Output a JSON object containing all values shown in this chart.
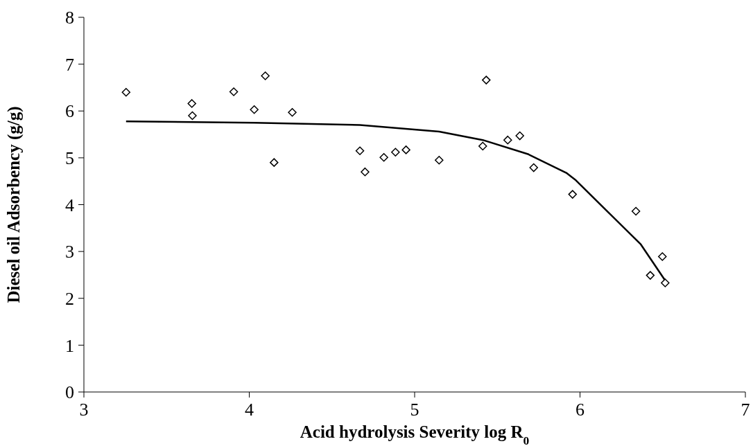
{
  "chart_data": {
    "type": "scatter",
    "xlabel": "Acid hydrolysis Severity log R$_{0}$",
    "ylabel": "Diesel oil Adsorbency (g/g)",
    "xlim": [
      3,
      7
    ],
    "xticks": [
      3,
      4,
      5,
      6,
      7
    ],
    "ylim": [
      0,
      8
    ],
    "yticks": [
      0,
      1,
      2,
      3,
      4,
      5,
      6,
      7,
      8
    ],
    "grid": false,
    "legend": false,
    "series": [
      {
        "color": "#000000",
        "marker": "diamond",
        "x": [
          3.255,
          3.653,
          3.656,
          3.906,
          4.03,
          4.097,
          4.15,
          4.26,
          4.669,
          4.7,
          4.814,
          4.884,
          4.948,
          5.148,
          5.412,
          5.433,
          5.563,
          5.636,
          5.72,
          5.955,
          6.338,
          6.425,
          6.498,
          6.515
        ],
        "values": [
          6.4,
          6.16,
          5.9,
          6.41,
          6.03,
          6.75,
          4.9,
          5.97,
          5.15,
          4.7,
          5.01,
          5.12,
          5.17,
          4.95,
          5.25,
          6.66,
          5.38,
          5.47,
          4.79,
          4.22,
          3.86,
          2.49,
          2.89,
          2.33
        ]
      },
      {
        "type": "line",
        "color": "#000000",
        "line_style": "solid",
        "x": [
          3.255,
          4.03,
          4.669,
          5.148,
          5.412,
          5.685,
          5.917,
          5.975,
          6.15,
          6.368,
          6.515
        ],
        "values": [
          5.78,
          5.75,
          5.7,
          5.56,
          5.38,
          5.08,
          4.68,
          4.52,
          3.91,
          3.15,
          2.38
        ]
      }
    ]
  }
}
